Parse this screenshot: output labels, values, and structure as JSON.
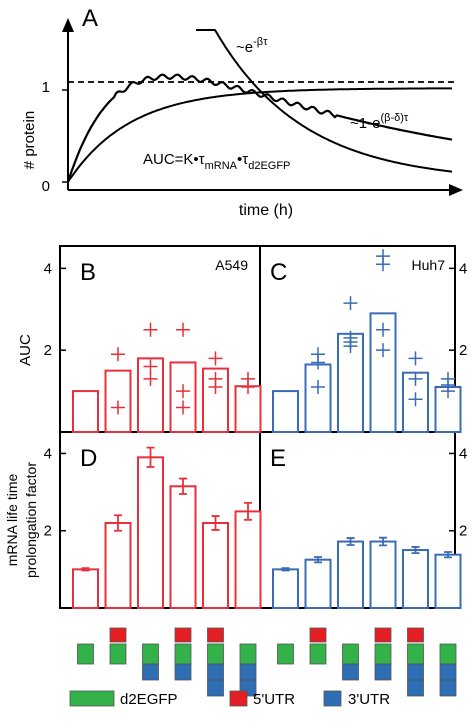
{
  "colors": {
    "red": "#e8303a",
    "blue": "#3a6bb5",
    "green": "#33b24a",
    "utr5": "#e31e24",
    "utr3": "#2e6eb5",
    "black": "#000000"
  },
  "chart_data": [
    {
      "panel": "A",
      "type": "line",
      "xlabel": "time (h)",
      "ylabel": "# protein",
      "yticks": [
        "0",
        "1"
      ],
      "series": [
        {
          "name": "~e^{-βτ}",
          "style": "decay"
        },
        {
          "name": "~1-e^{(β-δ)τ}",
          "style": "rise"
        },
        {
          "name": "",
          "style": "measured"
        }
      ],
      "reference_line": 1,
      "annotations": {
        "decay_main": "~e",
        "decay_sup": "-βτ",
        "rise_main": "~1-e",
        "rise_sup": "(β-δ)τ",
        "auc_main": "AUC=K•τ",
        "auc_sub1": "mRNA",
        "auc_mid": "•τ",
        "auc_sub2": "d2EGFP"
      }
    },
    {
      "panel": "B",
      "type": "bar",
      "cell_line": "A549",
      "ylabel": "AUC",
      "ylim": [
        0,
        4.4
      ],
      "yticks": [
        2,
        4
      ],
      "values": [
        1.0,
        1.5,
        1.8,
        1.7,
        1.55,
        1.12
      ],
      "replicates": [
        [],
        [
          1.9,
          0.6
        ],
        [
          2.5,
          1.6,
          1.3
        ],
        [
          2.5,
          1.0,
          0.6
        ],
        [
          1.8,
          1.3,
          1.1
        ],
        [
          1.3,
          1.1
        ]
      ],
      "color": "red"
    },
    {
      "panel": "C",
      "type": "bar",
      "cell_line": "Huh7",
      "ylim": [
        0,
        4.4
      ],
      "yticks": [
        2,
        4
      ],
      "values": [
        1.0,
        1.65,
        2.4,
        2.9,
        1.45,
        1.1
      ],
      "replicates": [
        [],
        [
          1.9,
          1.7,
          1.1
        ],
        [
          3.15,
          2.3,
          2.2,
          2.1
        ],
        [
          4.3,
          4.1,
          2.5,
          2.0
        ],
        [
          1.8,
          1.3,
          0.8
        ],
        [
          1.3,
          1.15,
          1.0
        ]
      ],
      "color": "blue"
    },
    {
      "panel": "D",
      "type": "bar",
      "ylabel": "mRNA life time prolongation factor",
      "ylim": [
        0,
        4.4
      ],
      "yticks": [
        2,
        4
      ],
      "values": [
        1.0,
        2.2,
        3.9,
        3.15,
        2.2,
        2.5
      ],
      "errors": [
        0.03,
        0.2,
        0.25,
        0.2,
        0.18,
        0.22
      ],
      "color": "red"
    },
    {
      "panel": "E",
      "type": "bar",
      "ylim": [
        0,
        4.4
      ],
      "yticks": [
        2,
        4
      ],
      "values": [
        1.0,
        1.25,
        1.72,
        1.72,
        1.5,
        1.38
      ],
      "errors": [
        0.03,
        0.07,
        0.09,
        0.1,
        0.08,
        0.07
      ],
      "color": "blue"
    }
  ],
  "constructs": [
    {
      "utr5": false,
      "utr3": 0
    },
    {
      "utr5": true,
      "utr3": 0
    },
    {
      "utr5": false,
      "utr3": 1
    },
    {
      "utr5": true,
      "utr3": 1
    },
    {
      "utr5": true,
      "utr3": 2
    },
    {
      "utr5": false,
      "utr3": 2
    }
  ],
  "legend": [
    {
      "label": "d2EGFP",
      "color": "green"
    },
    {
      "label": "5'UTR",
      "color": "utr5"
    },
    {
      "label": "3'UTR",
      "color": "utr3"
    }
  ]
}
